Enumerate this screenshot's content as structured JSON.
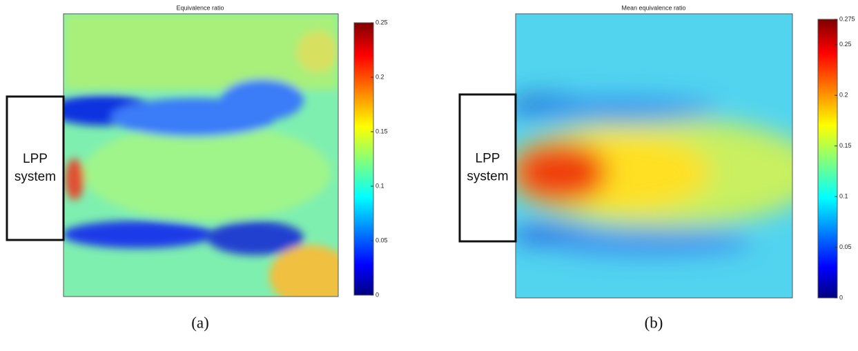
{
  "panels": [
    {
      "title": "Equivalence ratio",
      "box_label": [
        "LPP",
        "system"
      ],
      "caption": "(a)",
      "colorbar": {
        "lim": [
          0,
          0.25
        ],
        "ticks": [
          0,
          0.05,
          0.1,
          0.15,
          0.2,
          0.25
        ]
      }
    },
    {
      "title": "Mean equivalence ratio",
      "box_label": [
        "LPP",
        "system"
      ],
      "caption": "(b)",
      "colorbar": {
        "lim": [
          0,
          0.275
        ],
        "ticks": [
          0,
          0.05,
          0.1,
          0.15,
          0.2,
          0.25,
          0.275
        ]
      }
    }
  ]
}
